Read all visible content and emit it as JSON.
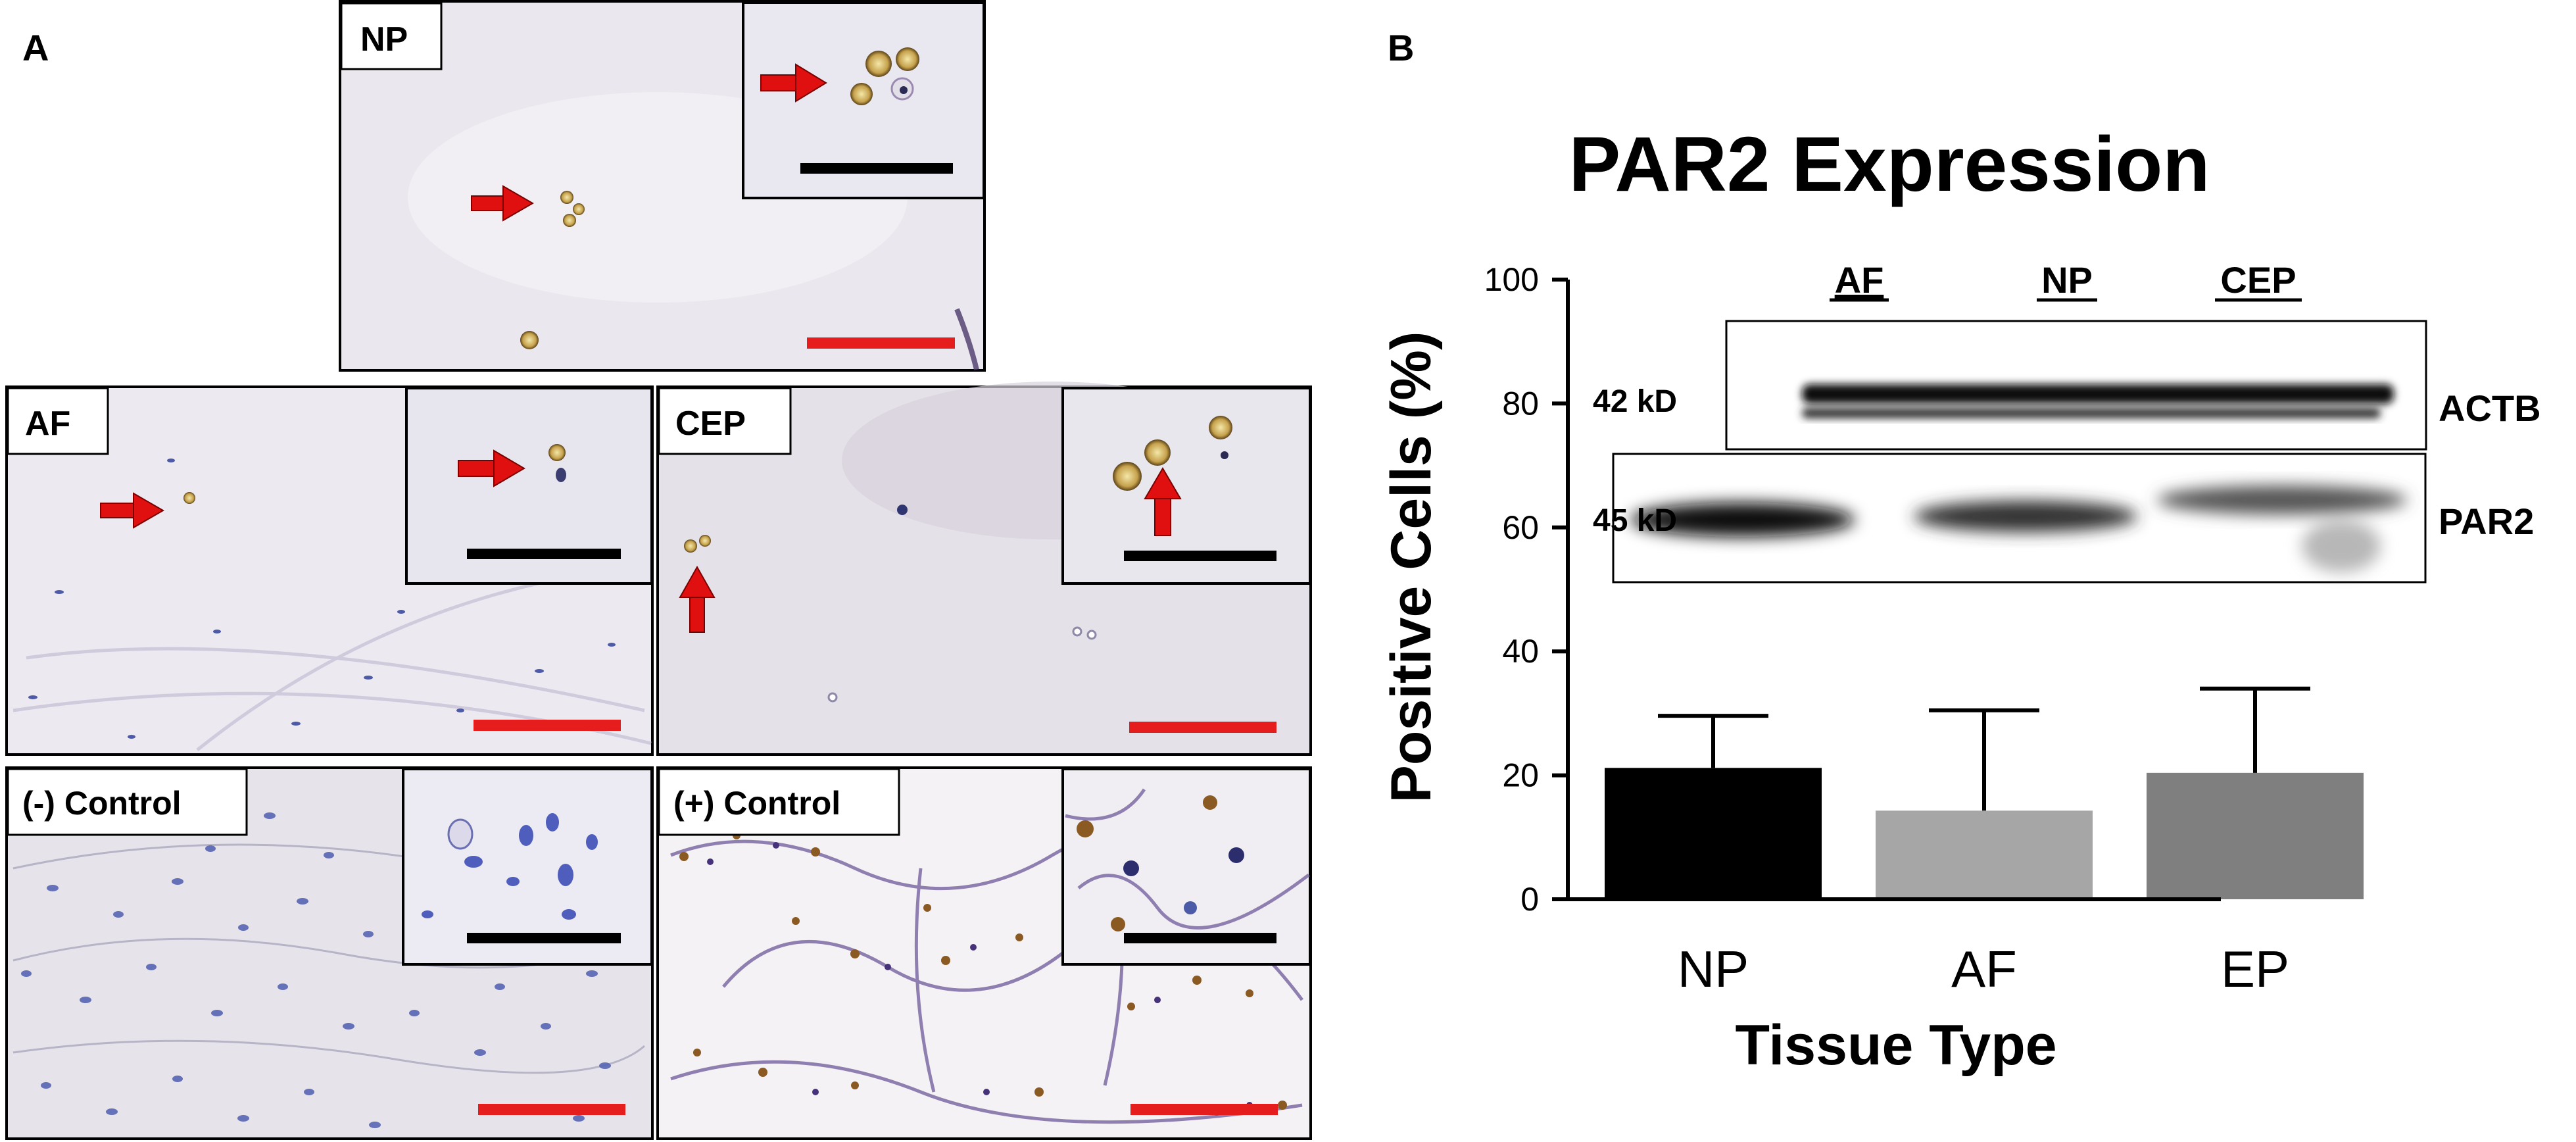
{
  "panel_a": {
    "letter": "A",
    "panels": [
      {
        "id": "np",
        "label": "NP"
      },
      {
        "id": "af",
        "label": "AF"
      },
      {
        "id": "cep",
        "label": "CEP"
      },
      {
        "id": "neg",
        "label": "(-) Control"
      },
      {
        "id": "pos",
        "label": "(+) Control"
      }
    ]
  },
  "panel_b": {
    "letter": "B",
    "blot": {
      "lanes": [
        "AF",
        "NP",
        "CEP"
      ],
      "rows": [
        {
          "size": "42 kD",
          "protein": "ACTB"
        },
        {
          "size": "45 kD",
          "protein": "PAR2"
        }
      ]
    }
  },
  "chart_data": {
    "type": "bar",
    "title": "PAR2 Expression",
    "xlabel": "Tissue Type",
    "ylabel": "Positive Cells (%)",
    "ylim": [
      0,
      100
    ],
    "yticks": [
      0,
      20,
      40,
      60,
      80,
      100
    ],
    "categories": [
      "NP",
      "AF",
      "EP"
    ],
    "values": [
      21.2,
      14.3,
      20.4
    ],
    "errors": [
      8.4,
      16.2,
      13.6
    ],
    "colors": [
      "#000000",
      "#a6a6a6",
      "#7f7f7f"
    ]
  }
}
